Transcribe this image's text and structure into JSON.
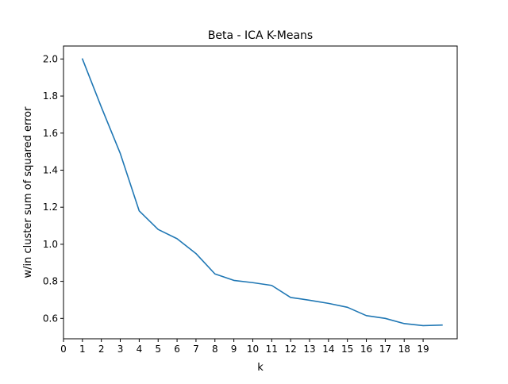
{
  "chart_data": {
    "type": "line",
    "title": "Beta - ICA K-Means",
    "xlabel": "k",
    "ylabel": "w/in cluster sum of squared error",
    "xlim": [
      0,
      20.8
    ],
    "ylim": [
      0.49,
      2.07
    ],
    "xticks": [
      0,
      1,
      2,
      3,
      4,
      5,
      6,
      7,
      8,
      9,
      10,
      11,
      12,
      13,
      14,
      15,
      16,
      17,
      18,
      19
    ],
    "yticks": [
      0.6,
      0.8,
      1.0,
      1.2,
      1.4,
      1.6,
      1.8,
      2.0
    ],
    "ytick_labels": [
      "0.6",
      "0.8",
      "1.0",
      "1.2",
      "1.4",
      "1.6",
      "1.8",
      "2.0"
    ],
    "grid": false,
    "series": [
      {
        "color": "#1f77b4",
        "x": [
          1,
          2,
          3,
          4,
          5,
          6,
          7,
          8,
          9,
          10,
          11,
          12,
          13,
          14,
          15,
          16,
          17,
          18,
          19,
          20
        ],
        "y": [
          2.0,
          1.74,
          1.49,
          1.18,
          1.08,
          1.03,
          0.95,
          0.84,
          0.805,
          0.793,
          0.778,
          0.713,
          0.698,
          0.681,
          0.66,
          0.615,
          0.6,
          0.572,
          0.561,
          0.564
        ]
      }
    ]
  }
}
